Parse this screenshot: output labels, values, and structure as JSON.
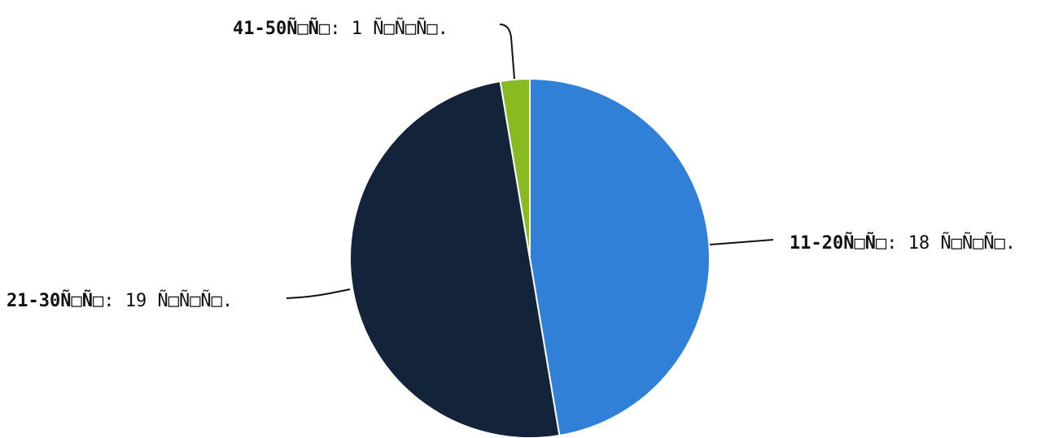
{
  "chart_data": {
    "type": "pie",
    "title": "",
    "slices": [
      {
        "name": "11-20Ñ□Ñ□",
        "value": 18,
        "value_text": "18 Ñ□Ñ□Ñ□.",
        "color": "#3080d8"
      },
      {
        "name": "21-30Ñ□Ñ□",
        "value": 19,
        "value_text": "19 Ñ□Ñ□Ñ□.",
        "color": "#12233a"
      },
      {
        "name": "41-50Ñ□Ñ□",
        "value": 1,
        "value_text": "1 Ñ□Ñ□Ñ□.",
        "color": "#8aba21"
      }
    ],
    "legend": "none"
  }
}
